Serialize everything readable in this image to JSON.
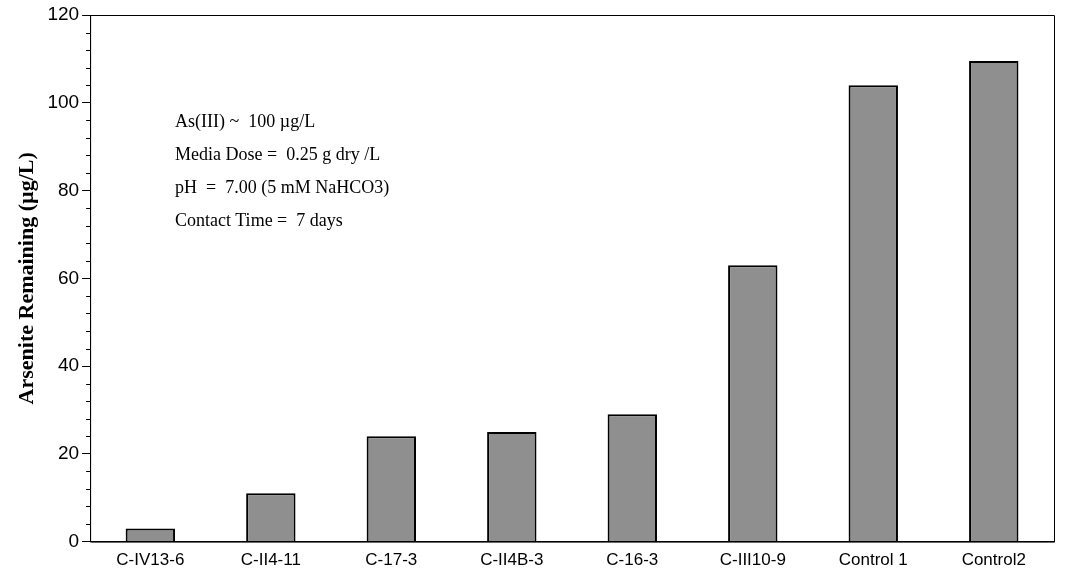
{
  "chart_data": {
    "type": "bar",
    "ylabel": "Arsenite Remaining (µg/L)",
    "categories": [
      "C-IV13-6",
      "C-II4-11",
      "C-17-3",
      "C-II4B-3",
      "C-16-3",
      "C-III10-9",
      "Control 1",
      "Control2"
    ],
    "values": [
      3,
      11,
      24,
      25,
      29,
      63,
      104,
      109.5
    ],
    "color": "#8f8f8f",
    "ylim": [
      0,
      120
    ],
    "yticks": [
      0,
      20,
      40,
      60,
      80,
      100,
      120
    ],
    "grid": false,
    "legend": false,
    "annotations": [
      "As(III) ~  100 µg/L",
      "Media Dose =  0.25 g dry /L",
      "pH  =  7.00 (5 mM NaHCO3)",
      "Contact Time =  7 days"
    ]
  }
}
